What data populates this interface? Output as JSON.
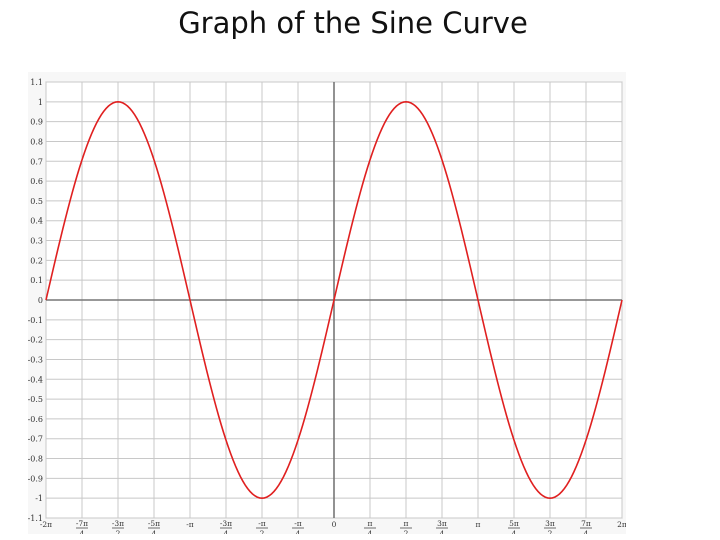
{
  "slide": {
    "title": "Graph of the Sine Curve"
  },
  "chart_data": {
    "type": "line",
    "title": "",
    "xlabel": "",
    "ylabel": "",
    "function": "sin(x)",
    "xlim": [
      -6.2832,
      6.2832
    ],
    "ylim": [
      -1.1,
      1.1
    ],
    "grid": true,
    "series": [
      {
        "color": "#e02020",
        "sample_points": 241
      }
    ],
    "x_ticks": [
      {
        "value": -6.2832,
        "num": "-2π",
        "den": ""
      },
      {
        "value": -5.4978,
        "num": "-7π",
        "den": "4"
      },
      {
        "value": -4.7124,
        "num": "-3π",
        "den": "2"
      },
      {
        "value": -3.927,
        "num": "-5π",
        "den": "4"
      },
      {
        "value": -3.1416,
        "num": "-π",
        "den": ""
      },
      {
        "value": -2.3562,
        "num": "-3π",
        "den": "4"
      },
      {
        "value": -1.5708,
        "num": "-π",
        "den": "2"
      },
      {
        "value": -0.7854,
        "num": "-π",
        "den": "4"
      },
      {
        "value": 0,
        "num": "0",
        "den": ""
      },
      {
        "value": 0.7854,
        "num": "π",
        "den": "4"
      },
      {
        "value": 1.5708,
        "num": "π",
        "den": "2"
      },
      {
        "value": 2.3562,
        "num": "3π",
        "den": "4"
      },
      {
        "value": 3.1416,
        "num": "π",
        "den": ""
      },
      {
        "value": 3.927,
        "num": "5π",
        "den": "4"
      },
      {
        "value": 4.7124,
        "num": "3π",
        "den": "2"
      },
      {
        "value": 5.4978,
        "num": "7π",
        "den": "4"
      },
      {
        "value": 6.2832,
        "num": "2π",
        "den": ""
      }
    ],
    "y_ticks": [
      {
        "value": 1.1,
        "label": "1.1"
      },
      {
        "value": 1.0,
        "label": "1"
      },
      {
        "value": 0.9,
        "label": "0.9"
      },
      {
        "value": 0.8,
        "label": "0.8"
      },
      {
        "value": 0.7,
        "label": "0.7"
      },
      {
        "value": 0.6,
        "label": "0.6"
      },
      {
        "value": 0.5,
        "label": "0.5"
      },
      {
        "value": 0.4,
        "label": "0.4"
      },
      {
        "value": 0.3,
        "label": "0.3"
      },
      {
        "value": 0.2,
        "label": "0.2"
      },
      {
        "value": 0.1,
        "label": "0.1"
      },
      {
        "value": 0,
        "label": "0"
      },
      {
        "value": -0.1,
        "label": "-0.1"
      },
      {
        "value": -0.2,
        "label": "-0.2"
      },
      {
        "value": -0.3,
        "label": "-0.3"
      },
      {
        "value": -0.4,
        "label": "-0.4"
      },
      {
        "value": -0.5,
        "label": "-0.5"
      },
      {
        "value": -0.6,
        "label": "-0.6"
      },
      {
        "value": -0.7,
        "label": "-0.7"
      },
      {
        "value": -0.8,
        "label": "-0.8"
      },
      {
        "value": -0.9,
        "label": "-0.9"
      },
      {
        "value": -1.0,
        "label": "-1"
      },
      {
        "value": -1.1,
        "label": "-1.1"
      }
    ],
    "colors": {
      "grid": "#c8c8c8",
      "axis": "#777777"
    }
  }
}
